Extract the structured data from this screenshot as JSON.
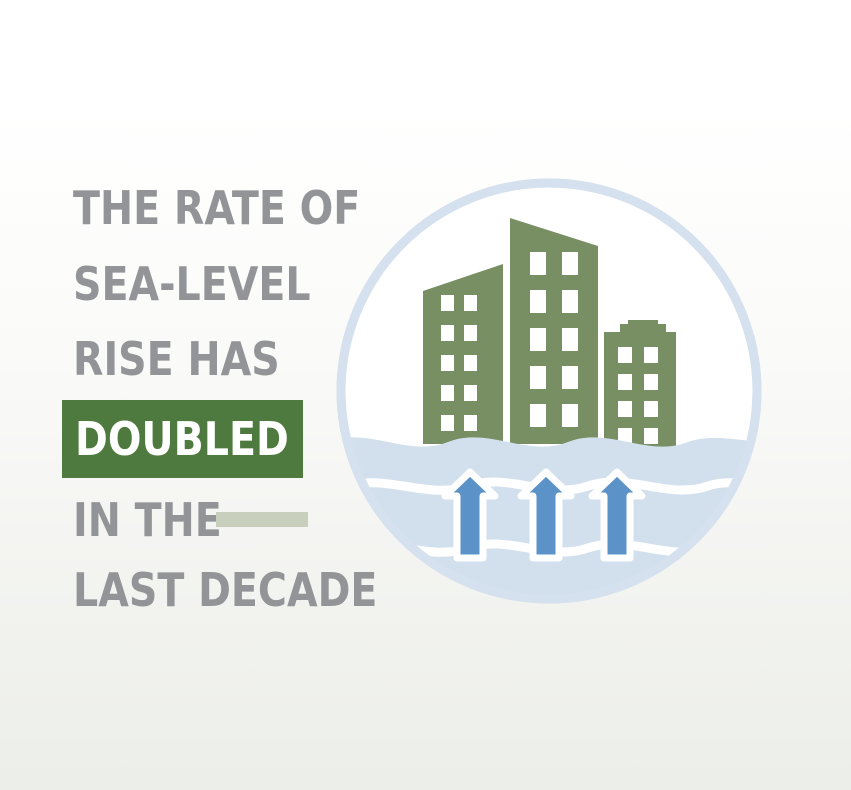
{
  "headline": {
    "line1": "THE RATE OF",
    "line2": "SEA-LEVEL",
    "line3": "RISE HAS",
    "highlight": "DOUBLED",
    "line5": "IN THE",
    "line6": "LAST DECADE"
  },
  "colors": {
    "headline_text": "#929497",
    "highlight_background": "#4f7a3f",
    "highlight_text": "#ffffff",
    "dash": "#c8cfbd",
    "building": "#778f63",
    "circle_ring": "#d5e1ee",
    "water": "#d2dfec",
    "arrow": "#5b93c8"
  },
  "illustration": {
    "icons": [
      "circle-ring-icon",
      "building-icon",
      "wave-icon",
      "up-arrow-icon"
    ]
  }
}
